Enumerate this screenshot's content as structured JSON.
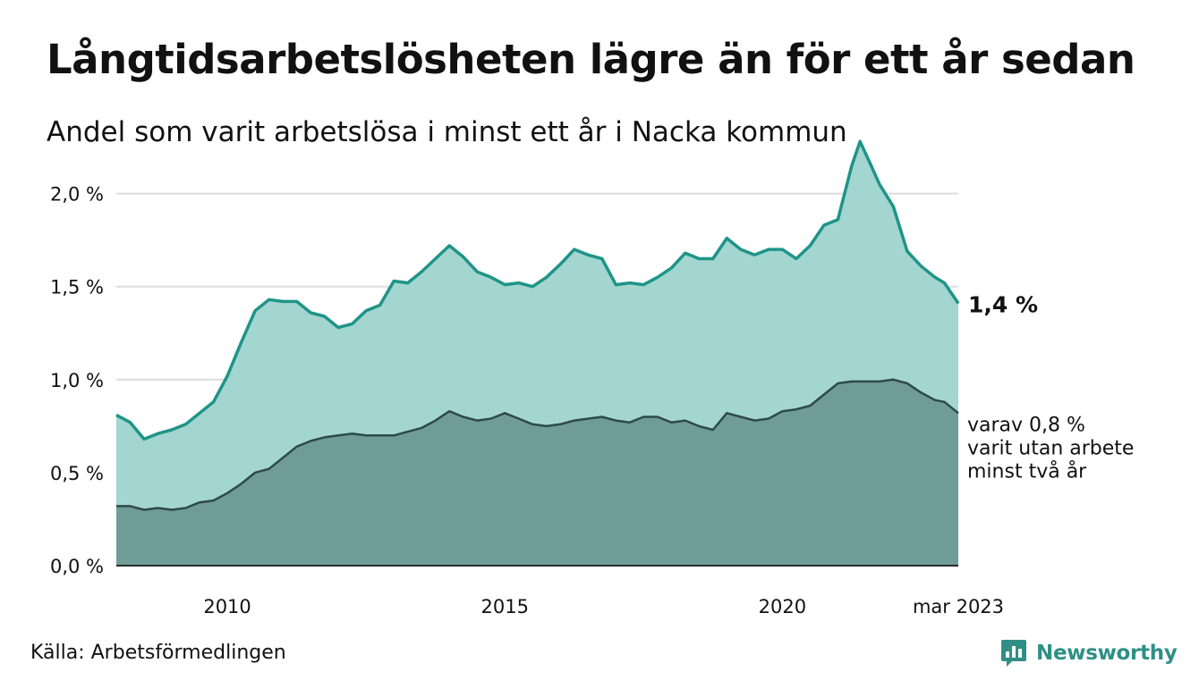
{
  "title": "Långtidsarbetslösheten lägre än för ett år sedan",
  "subtitle": "Andel som varit arbetslösa i minst ett år i Nacka kommun",
  "source": "Källa: Arbetsförmedlingen",
  "brand": {
    "name": "Newsworthy",
    "icon": "newsworthy-logo-icon",
    "color": "#2f8f86"
  },
  "chart_data": {
    "type": "area",
    "x_start": "2008-01",
    "x_end": "2023-03",
    "xlim": [
      2008.0,
      2023.17
    ],
    "ylim": [
      0,
      2.2
    ],
    "yticks": [
      {
        "value": 0.0,
        "label": "0,0 %"
      },
      {
        "value": 0.5,
        "label": "0,5 %"
      },
      {
        "value": 1.0,
        "label": "1,0 %"
      },
      {
        "value": 1.5,
        "label": "1,5 %"
      },
      {
        "value": 2.0,
        "label": "2,0 %"
      }
    ],
    "xticks": [
      {
        "value": 2010,
        "label": "2010"
      },
      {
        "value": 2015,
        "label": "2015"
      },
      {
        "value": 2020,
        "label": "2020"
      },
      {
        "value": 2023.17,
        "label": "mar 2023"
      }
    ],
    "grid": true,
    "series": [
      {
        "key": "min1yr",
        "color": "#1f9488",
        "fill": "#a3d6d0",
        "end_label": "1,4 %",
        "points": [
          [
            2008.0,
            0.81
          ],
          [
            2008.25,
            0.77
          ],
          [
            2008.5,
            0.68
          ],
          [
            2008.75,
            0.71
          ],
          [
            2009.0,
            0.73
          ],
          [
            2009.25,
            0.76
          ],
          [
            2009.5,
            0.82
          ],
          [
            2009.75,
            0.88
          ],
          [
            2010.0,
            1.02
          ],
          [
            2010.25,
            1.2
          ],
          [
            2010.5,
            1.37
          ],
          [
            2010.75,
            1.43
          ],
          [
            2011.0,
            1.42
          ],
          [
            2011.25,
            1.42
          ],
          [
            2011.5,
            1.36
          ],
          [
            2011.75,
            1.34
          ],
          [
            2012.0,
            1.28
          ],
          [
            2012.25,
            1.3
          ],
          [
            2012.5,
            1.37
          ],
          [
            2012.75,
            1.4
          ],
          [
            2013.0,
            1.53
          ],
          [
            2013.25,
            1.52
          ],
          [
            2013.5,
            1.58
          ],
          [
            2013.75,
            1.65
          ],
          [
            2014.0,
            1.72
          ],
          [
            2014.25,
            1.66
          ],
          [
            2014.5,
            1.58
          ],
          [
            2014.75,
            1.55
          ],
          [
            2015.0,
            1.51
          ],
          [
            2015.25,
            1.52
          ],
          [
            2015.5,
            1.5
          ],
          [
            2015.75,
            1.55
          ],
          [
            2016.0,
            1.62
          ],
          [
            2016.25,
            1.7
          ],
          [
            2016.5,
            1.67
          ],
          [
            2016.75,
            1.65
          ],
          [
            2017.0,
            1.51
          ],
          [
            2017.25,
            1.52
          ],
          [
            2017.5,
            1.51
          ],
          [
            2017.75,
            1.55
          ],
          [
            2018.0,
            1.6
          ],
          [
            2018.25,
            1.68
          ],
          [
            2018.5,
            1.65
          ],
          [
            2018.75,
            1.65
          ],
          [
            2019.0,
            1.76
          ],
          [
            2019.25,
            1.7
          ],
          [
            2019.5,
            1.67
          ],
          [
            2019.75,
            1.7
          ],
          [
            2020.0,
            1.7
          ],
          [
            2020.25,
            1.65
          ],
          [
            2020.5,
            1.72
          ],
          [
            2020.75,
            1.83
          ],
          [
            2021.0,
            1.86
          ],
          [
            2021.25,
            2.15
          ],
          [
            2021.4,
            2.28
          ],
          [
            2021.6,
            2.15
          ],
          [
            2021.75,
            2.05
          ],
          [
            2022.0,
            1.93
          ],
          [
            2022.25,
            1.69
          ],
          [
            2022.5,
            1.61
          ],
          [
            2022.75,
            1.55
          ],
          [
            2022.92,
            1.52
          ],
          [
            2023.17,
            1.41
          ]
        ]
      },
      {
        "key": "min2yr",
        "color": "#2f4a46",
        "fill": "#6f9c96",
        "end_label": [
          "varav 0,8 %",
          "varit utan arbete",
          "minst två år"
        ],
        "points": [
          [
            2008.0,
            0.32
          ],
          [
            2008.25,
            0.32
          ],
          [
            2008.5,
            0.3
          ],
          [
            2008.75,
            0.31
          ],
          [
            2009.0,
            0.3
          ],
          [
            2009.25,
            0.31
          ],
          [
            2009.5,
            0.34
          ],
          [
            2009.75,
            0.35
          ],
          [
            2010.0,
            0.39
          ],
          [
            2010.25,
            0.44
          ],
          [
            2010.5,
            0.5
          ],
          [
            2010.75,
            0.52
          ],
          [
            2011.0,
            0.58
          ],
          [
            2011.25,
            0.64
          ],
          [
            2011.5,
            0.67
          ],
          [
            2011.75,
            0.69
          ],
          [
            2012.0,
            0.7
          ],
          [
            2012.25,
            0.71
          ],
          [
            2012.5,
            0.7
          ],
          [
            2012.75,
            0.7
          ],
          [
            2013.0,
            0.7
          ],
          [
            2013.25,
            0.72
          ],
          [
            2013.5,
            0.74
          ],
          [
            2013.75,
            0.78
          ],
          [
            2014.0,
            0.83
          ],
          [
            2014.25,
            0.8
          ],
          [
            2014.5,
            0.78
          ],
          [
            2014.75,
            0.79
          ],
          [
            2015.0,
            0.82
          ],
          [
            2015.25,
            0.79
          ],
          [
            2015.5,
            0.76
          ],
          [
            2015.75,
            0.75
          ],
          [
            2016.0,
            0.76
          ],
          [
            2016.25,
            0.78
          ],
          [
            2016.5,
            0.79
          ],
          [
            2016.75,
            0.8
          ],
          [
            2017.0,
            0.78
          ],
          [
            2017.25,
            0.77
          ],
          [
            2017.5,
            0.8
          ],
          [
            2017.75,
            0.8
          ],
          [
            2018.0,
            0.77
          ],
          [
            2018.25,
            0.78
          ],
          [
            2018.5,
            0.75
          ],
          [
            2018.75,
            0.73
          ],
          [
            2019.0,
            0.82
          ],
          [
            2019.25,
            0.8
          ],
          [
            2019.5,
            0.78
          ],
          [
            2019.75,
            0.79
          ],
          [
            2020.0,
            0.83
          ],
          [
            2020.25,
            0.84
          ],
          [
            2020.5,
            0.86
          ],
          [
            2020.75,
            0.92
          ],
          [
            2021.0,
            0.98
          ],
          [
            2021.25,
            0.99
          ],
          [
            2021.5,
            0.99
          ],
          [
            2021.75,
            0.99
          ],
          [
            2022.0,
            1.0
          ],
          [
            2022.25,
            0.98
          ],
          [
            2022.5,
            0.93
          ],
          [
            2022.75,
            0.89
          ],
          [
            2022.92,
            0.88
          ],
          [
            2023.17,
            0.82
          ]
        ]
      }
    ]
  }
}
